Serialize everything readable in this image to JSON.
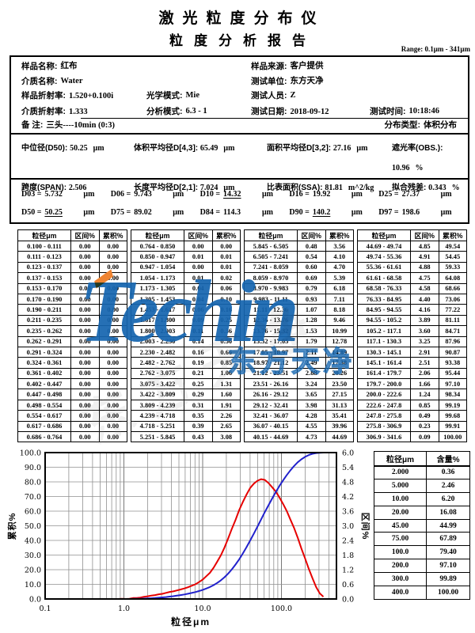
{
  "page": {
    "title_line1": "激光粒度分布仪",
    "title_line2": "粒度分析报告",
    "range_label": "Range: 0.1μm - 341μm"
  },
  "info": {
    "rows_left": [
      {
        "label": "样品名称:",
        "value": "红布"
      },
      {
        "label": "介质名称:",
        "value": "Water"
      },
      {
        "label": "样品折射率:",
        "value": "1.520+0.100i",
        "label2": "光学模式:",
        "value2": "Mie"
      },
      {
        "label": "介质折射率:",
        "value": "1.333",
        "label2": "分析模式:",
        "value2": "6.3 - 1"
      }
    ],
    "rows_right": [
      {
        "label": "样品来源:",
        "value": "客户提供"
      },
      {
        "label": "测试单位:",
        "value": "东方天净"
      },
      {
        "label": "测试人员:",
        "value": "Z"
      },
      {
        "label": "测试日期:",
        "value": "2018-09-12",
        "label2": "测试时间:",
        "value2": "10:18:46"
      }
    ],
    "remark_label": "备  注:",
    "remark_value": "三头----10min  (0:3)",
    "dist_type_label": "分布类型:",
    "dist_type_value": "体积分布"
  },
  "stats": {
    "row1": [
      {
        "label": "中位径(D50):",
        "value": "50.25",
        "unit": "μm"
      },
      {
        "label": "体积平均径D[4,3]:",
        "value": "65.49",
        "unit": "μm"
      },
      {
        "label": "面积平均径D[3,2]:",
        "value": "27.16",
        "unit": "μm"
      },
      {
        "label": "遮光率(OBS.):",
        "value": "10.96",
        "unit": "%"
      }
    ],
    "row2": [
      {
        "label": "跨度(SPAN):",
        "value": "2.506",
        "unit": ""
      },
      {
        "label": "长度平均径D[2,1]:",
        "value": "7.024",
        "unit": "μm"
      },
      {
        "label": "比表面积(SSA):",
        "value": "81.81",
        "unit": "m^2/kg"
      },
      {
        "label": "拟合残差:",
        "value": "0.343",
        "unit": "%"
      }
    ]
  },
  "dvalues": {
    "row1": [
      {
        "label": "D03 =",
        "value": "5.732",
        "unit": "μm",
        "underline": false
      },
      {
        "label": "D06 =",
        "value": "9.743",
        "unit": "μm",
        "underline": false
      },
      {
        "label": "D10 =",
        "value": "14.32",
        "unit": "μm",
        "underline": true
      },
      {
        "label": "D16 =",
        "value": "19.92",
        "unit": "μm",
        "underline": false
      },
      {
        "label": "D25 =",
        "value": "27.37",
        "unit": "μm",
        "underline": false
      }
    ],
    "row2": [
      {
        "label": "D50 =",
        "value": "50.25",
        "unit": "μm",
        "underline": true
      },
      {
        "label": "D75 =",
        "value": "89.02",
        "unit": "μm",
        "underline": false
      },
      {
        "label": "D84 =",
        "value": "114.3",
        "unit": "μm",
        "underline": false
      },
      {
        "label": "D90 =",
        "value": "140.2",
        "unit": "μm",
        "underline": true
      },
      {
        "label": "D97 =",
        "value": "198.6",
        "unit": "μm",
        "underline": false
      }
    ]
  },
  "bin_table": {
    "headers": [
      "粒径μm",
      "区间%",
      "累积%"
    ]
  },
  "summary_table": {
    "headers": [
      "粒径μm",
      "含量%"
    ],
    "rows": [
      [
        "2.000",
        "0.36"
      ],
      [
        "5.000",
        "2.46"
      ],
      [
        "10.00",
        "6.20"
      ],
      [
        "20.00",
        "16.08"
      ],
      [
        "45.00",
        "44.99"
      ],
      [
        "75.00",
        "67.89"
      ],
      [
        "100.0",
        "79.40"
      ],
      [
        "200.0",
        "97.10"
      ],
      [
        "300.0",
        "99.89"
      ],
      [
        "400.0",
        "100.00"
      ]
    ]
  },
  "watermark": {
    "logo_text": "Techin",
    "company_text": "东方天净"
  },
  "chart_data": {
    "type": "line",
    "xlabel": "粒径μm",
    "ylabel_left": "累积%",
    "ylabel_right": "区间%",
    "x_scale": "log",
    "xlim": [
      0.1,
      500
    ],
    "ylim_left": [
      0,
      100
    ],
    "ylim_right": [
      0,
      6
    ],
    "x_ticks": [
      0.1,
      1,
      10,
      100
    ],
    "y_ticks_left": [
      0,
      10,
      20,
      30,
      40,
      50,
      60,
      70,
      80,
      90,
      100
    ],
    "y_ticks_right": [
      0,
      0.6,
      1.2,
      1.8,
      2.4,
      3,
      3.6,
      4.2,
      4.8,
      5.4,
      6
    ],
    "grid": true,
    "legend": "none",
    "series": [
      {
        "name": "累积%",
        "axis": "left",
        "color": "#2121cc"
      },
      {
        "name": "区间%",
        "axis": "right",
        "color": "#e60000"
      }
    ],
    "bin_start": 0.1,
    "bins": [
      [
        0.111,
        0,
        0
      ],
      [
        0.123,
        0,
        0
      ],
      [
        0.137,
        0,
        0
      ],
      [
        0.153,
        0,
        0
      ],
      [
        0.17,
        0,
        0
      ],
      [
        0.19,
        0,
        0
      ],
      [
        0.211,
        0,
        0
      ],
      [
        0.235,
        0,
        0
      ],
      [
        0.262,
        0,
        0
      ],
      [
        0.291,
        0,
        0
      ],
      [
        0.324,
        0,
        0
      ],
      [
        0.361,
        0,
        0
      ],
      [
        0.402,
        0,
        0
      ],
      [
        0.447,
        0,
        0
      ],
      [
        0.498,
        0,
        0
      ],
      [
        0.554,
        0,
        0
      ],
      [
        0.617,
        0,
        0
      ],
      [
        0.686,
        0,
        0
      ],
      [
        0.764,
        0,
        0
      ],
      [
        0.85,
        0,
        0
      ],
      [
        0.947,
        0.01,
        0.01
      ],
      [
        1.054,
        0,
        0.01
      ],
      [
        1.173,
        0.01,
        0.02
      ],
      [
        1.305,
        0.04,
        0.06
      ],
      [
        1.453,
        0.04,
        0.1
      ],
      [
        1.617,
        0.06,
        0.16
      ],
      [
        1.8,
        0.09,
        0.25
      ],
      [
        2.003,
        0.11,
        0.36
      ],
      [
        2.23,
        0.14,
        0.5
      ],
      [
        2.482,
        0.16,
        0.66
      ],
      [
        2.762,
        0.19,
        0.85
      ],
      [
        3.075,
        0.21,
        1.06
      ],
      [
        3.422,
        0.25,
        1.31
      ],
      [
        3.809,
        0.29,
        1.6
      ],
      [
        4.239,
        0.31,
        1.91
      ],
      [
        4.718,
        0.35,
        2.26
      ],
      [
        5.251,
        0.39,
        2.65
      ],
      [
        5.845,
        0.43,
        3.08
      ],
      [
        6.505,
        0.48,
        3.56
      ],
      [
        7.241,
        0.54,
        4.1
      ],
      [
        8.059,
        0.6,
        4.7
      ],
      [
        8.97,
        0.69,
        5.39
      ],
      [
        9.983,
        0.79,
        6.18
      ],
      [
        11.11,
        0.93,
        7.11
      ],
      [
        12.36,
        1.07,
        8.18
      ],
      [
        13.76,
        1.28,
        9.46
      ],
      [
        15.32,
        1.53,
        10.99
      ],
      [
        17.05,
        1.79,
        12.78
      ],
      [
        18.97,
        2.11,
        14.89
      ],
      [
        21.12,
        2.49,
        17.38
      ],
      [
        23.51,
        2.88,
        20.26
      ],
      [
        26.16,
        3.24,
        23.5
      ],
      [
        29.12,
        3.65,
        27.15
      ],
      [
        32.41,
        3.98,
        31.13
      ],
      [
        36.07,
        4.28,
        35.41
      ],
      [
        40.15,
        4.55,
        39.96
      ],
      [
        44.69,
        4.73,
        44.69
      ],
      [
        49.74,
        4.85,
        49.54
      ],
      [
        55.36,
        4.91,
        54.45
      ],
      [
        61.61,
        4.88,
        59.33
      ],
      [
        68.58,
        4.75,
        64.08
      ],
      [
        76.33,
        4.58,
        68.66
      ],
      [
        84.95,
        4.4,
        73.06
      ],
      [
        94.55,
        4.16,
        77.22
      ],
      [
        105.2,
        3.89,
        81.11
      ],
      [
        117.1,
        3.6,
        84.71
      ],
      [
        130.3,
        3.25,
        87.96
      ],
      [
        145.1,
        2.91,
        90.87
      ],
      [
        161.4,
        2.51,
        93.38
      ],
      [
        179.7,
        2.06,
        95.44
      ],
      [
        200,
        1.66,
        97.1
      ],
      [
        222.6,
        1.24,
        98.34
      ],
      [
        247.8,
        0.85,
        99.19
      ],
      [
        275.8,
        0.49,
        99.68
      ],
      [
        306.9,
        0.23,
        99.91
      ],
      [
        341.6,
        0.09,
        100
      ]
    ]
  }
}
